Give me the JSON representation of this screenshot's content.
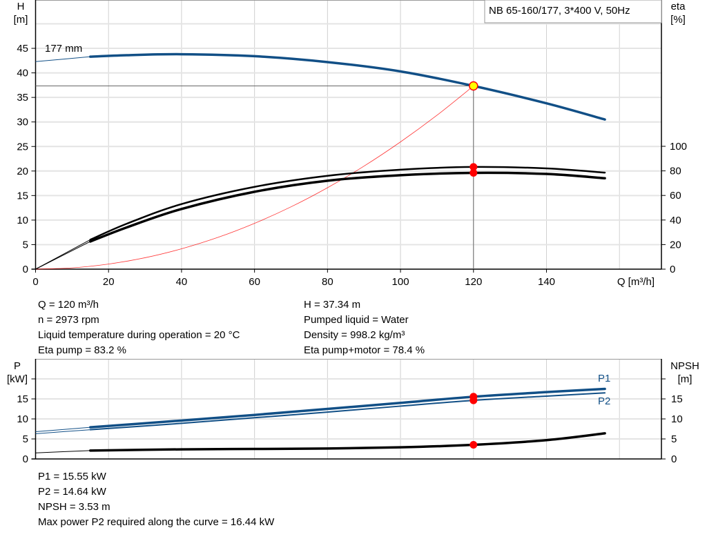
{
  "chart_data": [
    {
      "type": "line",
      "title": "NB 65-160/177, 3*400 V, 50Hz",
      "xlabel": "Q [m³/h]",
      "ylabel": [
        "H",
        "[m]"
      ],
      "y2label": [
        "eta",
        "[%]"
      ],
      "xlim": [
        0,
        171.5
      ],
      "ylim": [
        0,
        54.7
      ],
      "y2lim": [
        0,
        100
      ],
      "grid": true,
      "xticks": [
        "0",
        "20",
        "40",
        "60",
        "80",
        "100",
        "120",
        "140"
      ],
      "yticks": [
        "0",
        "5",
        "10",
        "15",
        "20",
        "25",
        "30",
        "35",
        "40",
        "45"
      ],
      "y2ticks": [
        "0",
        "20",
        "40",
        "60",
        "80",
        "100"
      ],
      "curve_label": "177 mm",
      "series": [
        {
          "id": "H",
          "axis": "H",
          "color": "#114f86",
          "x": [
            0,
            15,
            25,
            40,
            60,
            80,
            100,
            120,
            140,
            156
          ],
          "y": [
            42.3,
            43.3,
            43.6,
            43.8,
            43.4,
            42.2,
            40.3,
            37.34,
            33.8,
            30.5
          ]
        },
        {
          "id": "eta_pump",
          "axis": "eta",
          "color": "#000000",
          "x": [
            0,
            15,
            25,
            40,
            60,
            80,
            100,
            120,
            140,
            156
          ],
          "y": [
            0,
            24,
            37,
            53,
            67,
            76,
            81,
            83.2,
            82,
            78.6
          ]
        },
        {
          "id": "eta_pump_motor",
          "axis": "eta",
          "color": "#000000",
          "x": [
            0,
            15,
            25,
            40,
            60,
            80,
            100,
            120,
            140,
            156
          ],
          "y": [
            0,
            22.5,
            34,
            49,
            63,
            72,
            76.5,
            78.4,
            77.5,
            74
          ]
        },
        {
          "id": "system",
          "axis": "H",
          "color": "#ff0000",
          "x": [
            0,
            10,
            20,
            30,
            40,
            50,
            60,
            70,
            80,
            90,
            100,
            110,
            120
          ],
          "y": [
            0,
            0.26,
            1.04,
            2.33,
            4.15,
            6.48,
            9.34,
            12.7,
            16.6,
            21.0,
            25.93,
            31.37,
            37.34
          ]
        }
      ],
      "duty_point": {
        "Q": 120,
        "H": 37.34,
        "eta_pump": 83.2,
        "eta_pump_motor": 78.4
      }
    },
    {
      "type": "line",
      "ylabel": [
        "P",
        "[kW]"
      ],
      "y2label": [
        "NPSH",
        "[m]"
      ],
      "xlim": [
        0,
        171.5
      ],
      "ylim": [
        0,
        25
      ],
      "y2lim": [
        0,
        25
      ],
      "grid": true,
      "yticks": [
        "0",
        "5",
        "10",
        "15"
      ],
      "y2ticks": [
        "0",
        "5",
        "10",
        "15"
      ],
      "series": [
        {
          "id": "P1",
          "name": "P1",
          "color": "#114f86",
          "x": [
            0,
            15,
            40,
            60,
            80,
            100,
            120,
            140,
            156
          ],
          "y": [
            6.8,
            7.9,
            9.6,
            11.0,
            12.5,
            14.0,
            15.55,
            16.7,
            17.5
          ]
        },
        {
          "id": "P2",
          "name": "P2",
          "color": "#114f86",
          "x": [
            0,
            15,
            40,
            60,
            80,
            100,
            120,
            140,
            156
          ],
          "y": [
            6.3,
            7.3,
            8.9,
            10.3,
            11.7,
            13.2,
            14.64,
            15.7,
            16.5
          ]
        },
        {
          "id": "NPSH",
          "color": "#000000",
          "x": [
            0,
            15,
            40,
            60,
            80,
            100,
            120,
            140,
            156
          ],
          "y": [
            1.5,
            2.1,
            2.4,
            2.5,
            2.6,
            2.9,
            3.53,
            4.7,
            6.4
          ]
        }
      ],
      "duty_point": {
        "Q": 120,
        "P1": 15.55,
        "P2": 14.64,
        "NPSH": 3.53
      }
    }
  ],
  "info_top": {
    "left": [
      "Q = 120 m³/h",
      "n = 2973 rpm",
      "Liquid temperature during operation = 20 °C",
      "Eta pump = 83.2 %"
    ],
    "right": [
      "H = 37.34 m",
      "Pumped liquid = Water",
      "Density = 998.2 kg/m³",
      "Eta pump+motor = 78.4 %"
    ]
  },
  "info_bottom": [
    "P1 = 15.55 kW",
    "P2 = 14.64 kW",
    "NPSH = 3.53 m",
    "Max power P2 required along the curve = 16.44 kW"
  ],
  "colors": {
    "curve_blue": "#114f86",
    "marker_red": "#ff0000",
    "marker_yellow": "#ffff00",
    "grid": "#d0d0d0"
  }
}
